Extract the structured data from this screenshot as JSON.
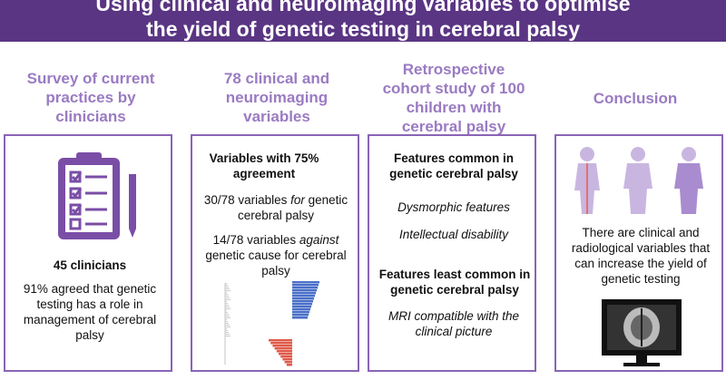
{
  "title_lines": [
    "Using clinical and neuroimaging variables to optimise",
    "the yield of genetic testing in cerebral palsy"
  ],
  "columns": [
    {
      "heading": "Survey of current practices by clinicians",
      "count": "45 clinicians",
      "text": "91% agreed that genetic testing has a role in management of cerebral palsy"
    },
    {
      "heading": "78 clinical and neuroimaging variables",
      "subheading": "Variables with 75% agreement",
      "items": [
        {
          "before": "30/78 variables ",
          "em": "for",
          "after": " genetic cerebral palsy"
        },
        {
          "before": "14/78 variables ",
          "em": "against",
          "after": " genetic cause for cerebral palsy"
        }
      ]
    },
    {
      "heading": "Retrospective cohort study of 100 children with cerebral palsy",
      "groups": [
        {
          "label": "Features common in genetic cerebral palsy",
          "items": [
            "Dysmorphic features",
            "Intellectual disability"
          ]
        },
        {
          "label": "Features least common in genetic cerebral palsy",
          "items": [
            "MRI compatible with the clinical picture"
          ]
        }
      ]
    },
    {
      "heading": "Conclusion",
      "text": "There are clinical and radiological variables that can increase  the yield of genetic testing"
    }
  ]
}
